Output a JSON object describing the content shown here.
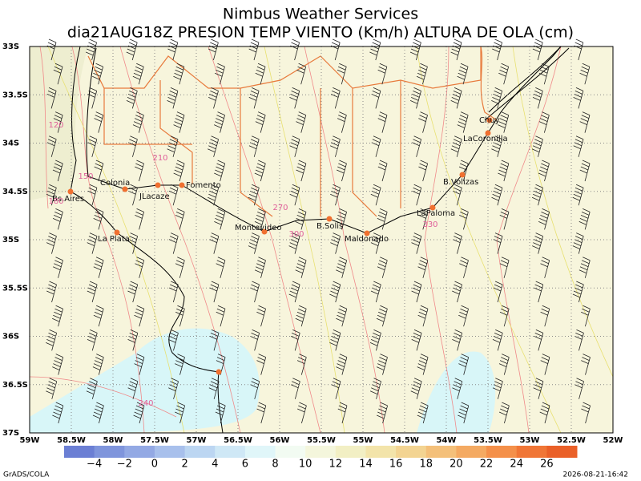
{
  "header": {
    "title": "Nimbus Weather Services",
    "subtitle": "dia21AUG18Z PRESION TEMP VIENTO (Km/h) ALTURA DE OLA (cm)"
  },
  "lat_labels": [
    "33S",
    "33.5S",
    "34S",
    "34.5S",
    "35S",
    "35.5S",
    "36S",
    "36.5S",
    "37S"
  ],
  "lon_labels": [
    "59W",
    "58.5W",
    "58W",
    "57.5W",
    "57W",
    "56.5W",
    "56W",
    "55.5W",
    "55W",
    "54.5W",
    "54W",
    "53.5W",
    "53W",
    "52.5W",
    "52W"
  ],
  "cities": [
    "Chuy",
    "LaCoronilla",
    "B.Volizas",
    "LaPaloma",
    "Maldonado",
    "B.Solis",
    "Montevideo",
    "Colonia",
    "JLacaze",
    "Fomento",
    "Bs.Aires",
    "La Plata"
  ],
  "contour_labels": [
    "120",
    "150",
    "180",
    "210",
    "270",
    "300",
    "330",
    "240"
  ],
  "colorbar": [
    "−4",
    "−2",
    "0",
    "2",
    "4",
    "6",
    "8",
    "10",
    "12",
    "14",
    "16",
    "18",
    "20",
    "22",
    "24",
    "26"
  ],
  "footer": {
    "left": "GrADS/COLA",
    "right": "2026-08-21-16:42"
  }
}
